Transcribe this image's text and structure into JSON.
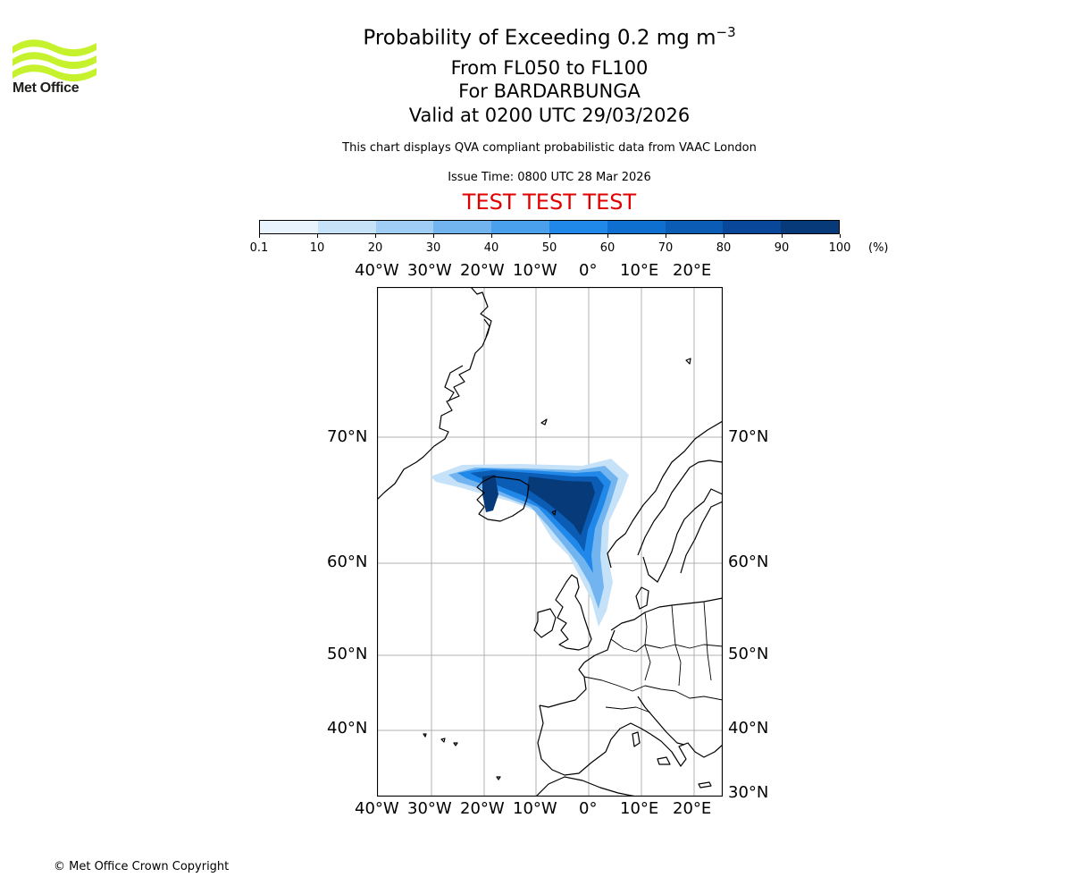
{
  "logo": {
    "text": "Met Office",
    "color": "#c6f22d",
    "icon": "met-office-waves-icon"
  },
  "header": {
    "title": "Probability of Exceeding 0.2 mg m",
    "title_sup": "−3",
    "levels": "From FL050 to FL100",
    "volcano": "For BARDARBUNGA",
    "valid": "Valid at 0200 UTC 29/03/2026",
    "description": "This chart displays QVA compliant probabilistic data from VAAC London",
    "issue_time": "Issue Time: 0800 UTC 28 Mar 2026",
    "test_banner": "TEST TEST TEST"
  },
  "colorbar": {
    "ticks": [
      "0.1",
      "10",
      "20",
      "30",
      "40",
      "50",
      "60",
      "70",
      "80",
      "90",
      "100"
    ],
    "unit": "(%)",
    "colors": [
      "#e8f3fd",
      "#c6e2f9",
      "#9fcdf5",
      "#72b4ef",
      "#4aa0ec",
      "#2088e8",
      "#0f6fd0",
      "#0b5cb5",
      "#08479a",
      "#063a78",
      "#032a58"
    ]
  },
  "map": {
    "lon_labels": [
      "40°W",
      "30°W",
      "20°W",
      "10°W",
      "0°",
      "10°E",
      "20°E"
    ],
    "lat_labels_left": [
      "70°N",
      "60°N",
      "50°N",
      "40°N"
    ],
    "lat_labels_right": [
      "70°N",
      "60°N",
      "50°N",
      "40°N",
      "30°N"
    ]
  },
  "footer": {
    "copyright": "© Met Office Crown Copyright"
  }
}
